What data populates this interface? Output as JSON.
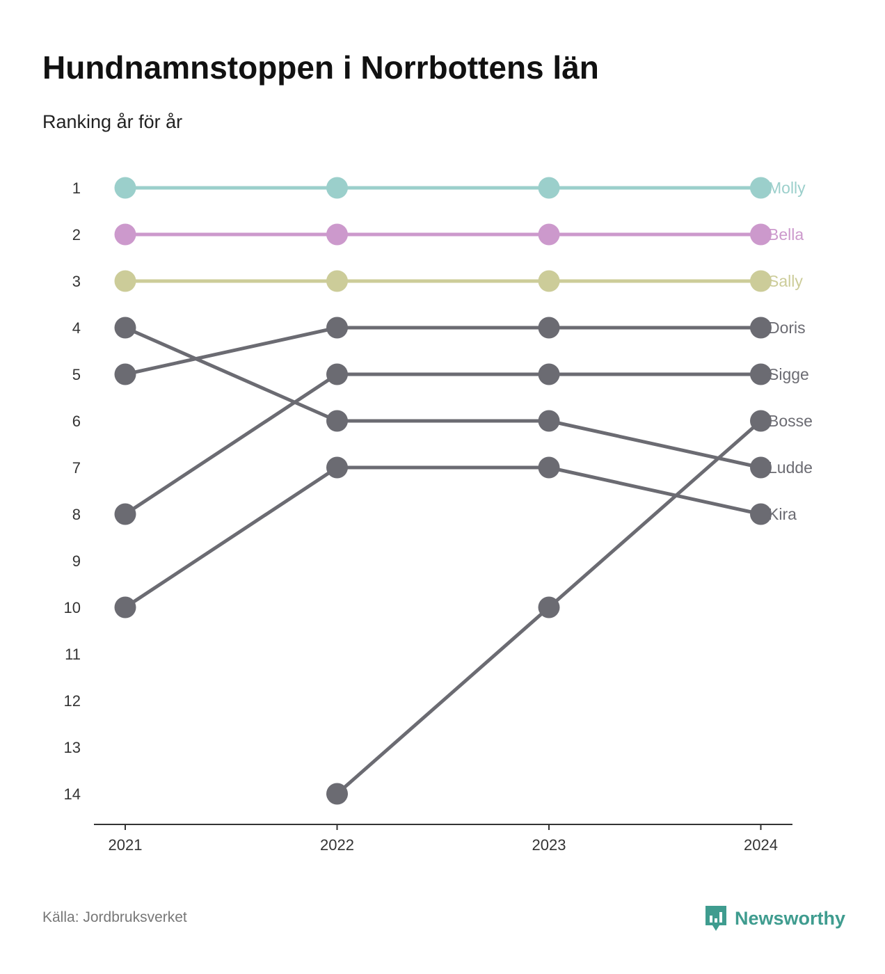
{
  "title": "Hundnamnstoppen i Norrbottens län",
  "subtitle": "Ranking år för år",
  "source": "Källa: Jordbruksverket",
  "brand": {
    "name": "Newsworthy",
    "icon": "newsworthy-logo-icon",
    "color": "#3f9c8f"
  },
  "chart_data": {
    "type": "line",
    "title": "Hundnamnstoppen i Norrbottens län",
    "subtitle": "Ranking år för år",
    "x": [
      "2021",
      "2022",
      "2023",
      "2024"
    ],
    "y_ticks": [
      1,
      2,
      3,
      4,
      5,
      6,
      7,
      8,
      9,
      10,
      11,
      12,
      13,
      14
    ],
    "ylim": [
      1,
      14
    ],
    "y_reversed": true,
    "grid": false,
    "legend": "labels at right end of lines",
    "series": [
      {
        "name": "Molly",
        "values": [
          1,
          1,
          1,
          1
        ],
        "color": "#9bcfcb"
      },
      {
        "name": "Bella",
        "values": [
          2,
          2,
          2,
          2
        ],
        "color": "#cc99cc"
      },
      {
        "name": "Sally",
        "values": [
          3,
          3,
          3,
          3
        ],
        "color": "#cccc99"
      },
      {
        "name": "Doris",
        "values": [
          5,
          4,
          4,
          4
        ],
        "color": "#6b6b72"
      },
      {
        "name": "Sigge",
        "values": [
          8,
          5,
          5,
          5
        ],
        "color": "#6b6b72"
      },
      {
        "name": "Bosse",
        "values": [
          null,
          14,
          10,
          6
        ],
        "color": "#6b6b72"
      },
      {
        "name": "Ludde",
        "values": [
          4,
          6,
          6,
          7
        ],
        "color": "#6b6b72"
      },
      {
        "name": "Kira",
        "values": [
          10,
          7,
          7,
          8
        ],
        "color": "#6b6b72"
      }
    ]
  }
}
